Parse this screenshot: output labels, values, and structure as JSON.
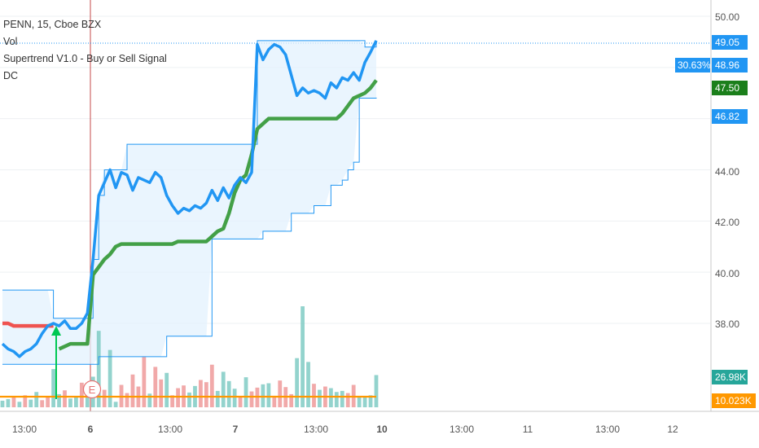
{
  "legend": {
    "symbol": "PENN, 15, Cboe BZX",
    "vol": "Vol",
    "supertrend": "Supertrend V1.0 - Buy or Sell Signal",
    "dc": "DC"
  },
  "colors": {
    "price": "#2196f3",
    "supertrend_up": "#43a047",
    "supertrend_down": "#ef5350",
    "donchian": "#2196f3",
    "donchian_fill": "#e3f2fd",
    "vol_up": "#80cbc4",
    "vol_down": "#ef9a9a",
    "vol_ma": "#ff9800",
    "buy_arrow": "#00c853",
    "session_line": "#b71c1c"
  },
  "price_axis": {
    "ticks": [
      "50.00",
      "44.00",
      "42.00",
      "40.00",
      "38.00"
    ]
  },
  "price_labels": [
    {
      "text": "49.05",
      "bg": "#2196f3",
      "fg": "#ffffff"
    },
    {
      "text": "48.96",
      "bg": "#2196f3",
      "fg": "#ffffff"
    },
    {
      "text": "47.50",
      "bg": "#1b7f1b",
      "fg": "#ffffff"
    },
    {
      "text": "46.82",
      "bg": "#2196f3",
      "fg": "#ffffff"
    },
    {
      "text": "26.98K",
      "bg": "#26a69a",
      "fg": "#ffffff"
    },
    {
      "text": "10.023K",
      "bg": "#ff9800",
      "fg": "#ffffff"
    }
  ],
  "percent_badge": "30.63%",
  "earnings_marker": "E",
  "time_axis": {
    "labels": [
      "13:00",
      "6",
      "13:00",
      "7",
      "13:00",
      "10",
      "13:00",
      "11",
      "13:00",
      "12"
    ]
  },
  "chart_data": {
    "type": "line",
    "price": [
      37.2,
      37.0,
      36.9,
      36.7,
      36.9,
      37.0,
      37.2,
      37.6,
      37.9,
      38.0,
      37.9,
      38.1,
      37.8,
      37.8,
      38.0,
      38.4,
      40.5,
      43.0,
      43.5,
      44.0,
      43.3,
      43.9,
      43.8,
      43.2,
      43.7,
      43.6,
      43.5,
      43.9,
      43.7,
      43.0,
      42.6,
      42.3,
      42.5,
      42.4,
      42.6,
      42.5,
      42.7,
      43.2,
      42.8,
      43.3,
      42.9,
      43.4,
      43.7,
      43.5,
      43.9,
      48.9,
      48.3,
      48.7,
      48.9,
      48.8,
      48.5,
      47.7,
      46.9,
      47.2,
      47.0,
      47.1,
      47.0,
      46.8,
      47.4,
      47.2,
      47.6,
      47.5,
      47.8,
      47.5,
      48.2,
      48.6,
      49.05
    ],
    "supertrend": [
      38.0,
      38.0,
      37.9,
      37.9,
      37.9,
      37.9,
      37.9,
      37.9,
      37.9,
      37.9,
      37.0,
      37.1,
      37.2,
      37.2,
      37.2,
      37.2,
      39.9,
      40.2,
      40.5,
      40.7,
      41.0,
      41.1,
      41.1,
      41.1,
      41.1,
      41.1,
      41.1,
      41.1,
      41.1,
      41.1,
      41.1,
      41.2,
      41.2,
      41.2,
      41.2,
      41.2,
      41.2,
      41.4,
      41.6,
      41.7,
      42.3,
      43.1,
      43.6,
      43.8,
      44.6,
      45.6,
      45.8,
      46.0,
      46.0,
      46.0,
      46.0,
      46.0,
      46.0,
      46.0,
      46.0,
      46.0,
      46.0,
      46.0,
      46.0,
      46.0,
      46.2,
      46.5,
      46.8,
      46.9,
      47.0,
      47.2,
      47.5
    ],
    "donchian_upper": [
      39.3,
      39.3,
      39.3,
      39.3,
      39.3,
      39.3,
      39.3,
      39.3,
      39.3,
      38.2,
      38.2,
      38.2,
      38.2,
      38.2,
      38.2,
      38.2,
      40.5,
      43.0,
      44.0,
      44.0,
      44.0,
      44.0,
      45.0,
      45.0,
      45.0,
      45.0,
      45.0,
      45.0,
      45.0,
      45.0,
      45.0,
      45.0,
      45.0,
      45.0,
      45.0,
      45.0,
      45.0,
      45.0,
      45.0,
      45.0,
      45.0,
      45.0,
      45.0,
      45.0,
      45.0,
      49.05,
      49.05,
      49.05,
      49.05,
      49.05,
      49.05,
      49.05,
      49.05,
      49.05,
      49.05,
      49.05,
      49.05,
      49.05,
      49.05,
      49.05,
      49.05,
      49.05,
      49.05,
      49.05,
      48.8,
      48.8,
      49.05
    ],
    "donchian_lower": [
      36.4,
      36.4,
      36.4,
      36.4,
      36.4,
      36.4,
      36.4,
      36.4,
      36.4,
      36.4,
      36.4,
      36.4,
      36.4,
      36.4,
      36.4,
      36.4,
      36.4,
      36.7,
      36.7,
      36.7,
      36.7,
      36.7,
      36.7,
      36.7,
      36.7,
      36.7,
      36.7,
      36.7,
      36.7,
      37.5,
      37.5,
      37.5,
      37.5,
      37.5,
      37.5,
      37.5,
      37.5,
      41.3,
      41.3,
      41.3,
      41.3,
      41.3,
      41.3,
      41.3,
      41.3,
      41.3,
      41.6,
      41.6,
      41.6,
      41.6,
      41.6,
      42.3,
      42.3,
      42.3,
      42.3,
      42.6,
      42.6,
      42.6,
      43.4,
      43.4,
      43.6,
      44.0,
      44.3,
      46.8,
      46.8,
      46.8,
      46.82
    ],
    "volume": [
      1.2,
      1.5,
      1.8,
      1.0,
      2.2,
      1.4,
      2.8,
      1.3,
      1.9,
      7.0,
      2.4,
      3.1,
      1.6,
      2.0,
      4.5,
      3.3,
      5.6,
      14.0,
      3.2,
      10.5,
      1.0,
      4.1,
      2.6,
      6.0,
      3.8,
      9.2,
      2.5,
      7.4,
      5.1,
      6.3,
      2.2,
      3.5,
      4.0,
      2.7,
      3.9,
      5.0,
      4.6,
      7.8,
      3.0,
      6.5,
      4.8,
      3.4,
      2.0,
      5.5,
      2.9,
      3.6,
      4.2,
      4.4,
      2.1,
      4.9,
      3.7,
      2.4,
      9.0,
      18.5,
      8.3,
      4.3,
      3.2,
      3.8,
      3.5,
      2.8,
      3.0,
      2.6,
      4.1,
      1.8,
      2.0,
      2.2,
      5.9
    ],
    "volume_up": [
      1,
      1,
      0,
      1,
      0,
      1,
      1,
      0,
      0,
      1,
      1,
      0,
      1,
      1,
      0,
      1,
      1,
      1,
      0,
      1,
      1,
      0,
      0,
      0,
      0,
      0,
      1,
      0,
      0,
      1,
      0,
      0,
      0,
      1,
      1,
      0,
      0,
      0,
      1,
      1,
      1,
      1,
      0,
      1,
      0,
      0,
      1,
      1,
      0,
      0,
      0,
      0,
      1,
      1,
      1,
      0,
      1,
      0,
      1,
      1,
      1,
      0,
      0,
      1,
      1,
      1,
      1
    ],
    "volume_ma_k": 10.023,
    "ylim": [
      35.8,
      50.0
    ],
    "volume_max_k": 26.98
  }
}
